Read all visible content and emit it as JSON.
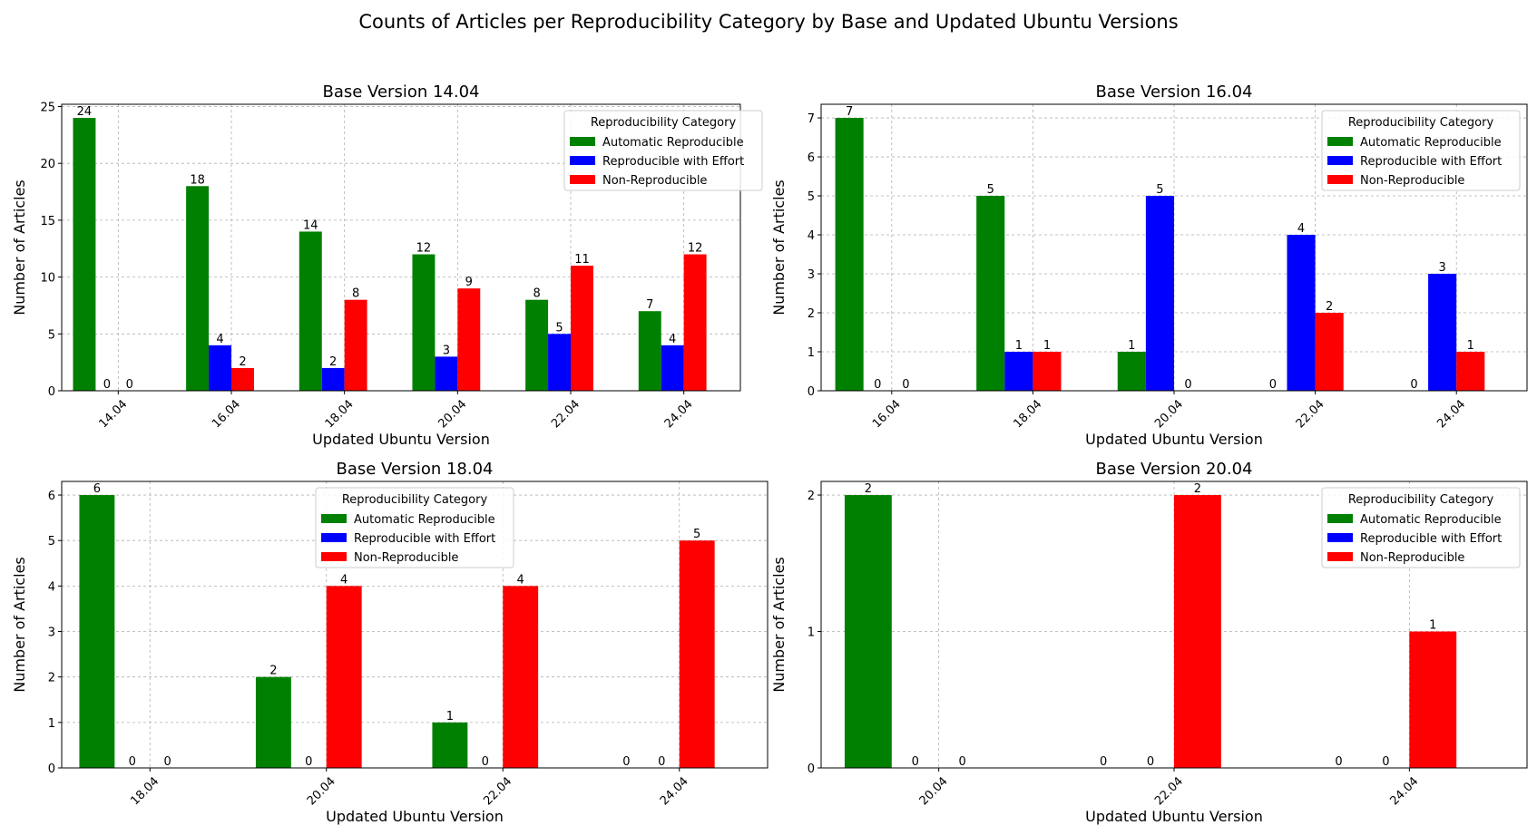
{
  "figure": {
    "title": "Counts of Articles per Reproducibility Category by Base and Updated Ubuntu Versions"
  },
  "colors": {
    "Automatic Reproducible": "#008000",
    "Reproducible with Effort": "#0000ff",
    "Non-Reproducible": "#ff0000"
  },
  "chart_data": [
    {
      "type": "bar",
      "title": "Base Version 14.04",
      "xlabel": "Updated Ubuntu Version",
      "ylabel": "Number of Articles",
      "categories": [
        "14.04",
        "16.04",
        "18.04",
        "20.04",
        "22.04",
        "24.04"
      ],
      "series": [
        {
          "name": "Automatic Reproducible",
          "values": [
            24,
            18,
            14,
            12,
            8,
            7
          ]
        },
        {
          "name": "Reproducible with Effort",
          "values": [
            0,
            4,
            2,
            3,
            5,
            4
          ]
        },
        {
          "name": "Non-Reproducible",
          "values": [
            0,
            2,
            8,
            9,
            11,
            12
          ]
        }
      ],
      "ylim": [
        0,
        25.2
      ],
      "yticks": [
        0,
        5,
        10,
        15,
        20,
        25
      ],
      "grid": true,
      "legend": {
        "title": "Reproducibility Category",
        "position": "upper-right"
      }
    },
    {
      "type": "bar",
      "title": "Base Version 16.04",
      "xlabel": "Updated Ubuntu Version",
      "ylabel": "Number of Articles",
      "categories": [
        "16.04",
        "18.04",
        "20.04",
        "22.04",
        "24.04"
      ],
      "series": [
        {
          "name": "Automatic Reproducible",
          "values": [
            7,
            5,
            1,
            0,
            0
          ]
        },
        {
          "name": "Reproducible with Effort",
          "values": [
            0,
            1,
            5,
            4,
            3
          ]
        },
        {
          "name": "Non-Reproducible",
          "values": [
            0,
            1,
            0,
            2,
            1
          ]
        }
      ],
      "ylim": [
        0,
        7.35
      ],
      "yticks": [
        0,
        1,
        2,
        3,
        4,
        5,
        6,
        7
      ],
      "grid": true,
      "legend": {
        "title": "Reproducibility Category",
        "position": "upper-right"
      }
    },
    {
      "type": "bar",
      "title": "Base Version 18.04",
      "xlabel": "Updated Ubuntu Version",
      "ylabel": "Number of Articles",
      "categories": [
        "18.04",
        "20.04",
        "22.04",
        "24.04"
      ],
      "series": [
        {
          "name": "Automatic Reproducible",
          "values": [
            6,
            2,
            1,
            0
          ]
        },
        {
          "name": "Reproducible with Effort",
          "values": [
            0,
            0,
            0,
            0
          ]
        },
        {
          "name": "Non-Reproducible",
          "values": [
            0,
            4,
            4,
            5
          ]
        }
      ],
      "ylim": [
        0,
        6.3
      ],
      "yticks": [
        0,
        1,
        2,
        3,
        4,
        5,
        6
      ],
      "grid": true,
      "legend": {
        "title": "Reproducibility Category",
        "position": "upper-center"
      }
    },
    {
      "type": "bar",
      "title": "Base Version 20.04",
      "xlabel": "Updated Ubuntu Version",
      "ylabel": "Number of Articles",
      "categories": [
        "20.04",
        "22.04",
        "24.04"
      ],
      "series": [
        {
          "name": "Automatic Reproducible",
          "values": [
            2,
            0,
            0
          ]
        },
        {
          "name": "Reproducible with Effort",
          "values": [
            0,
            0,
            0
          ]
        },
        {
          "name": "Non-Reproducible",
          "values": [
            0,
            2,
            1
          ]
        }
      ],
      "ylim": [
        0,
        2.1
      ],
      "yticks": [
        0,
        1,
        2
      ],
      "grid": true,
      "legend": {
        "title": "Reproducibility Category",
        "position": "upper-right"
      }
    }
  ]
}
